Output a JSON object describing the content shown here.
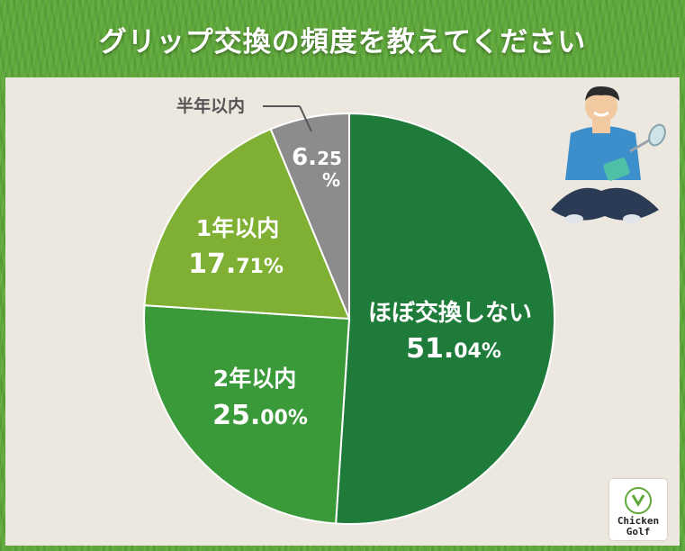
{
  "title": "グリップ交換の頻度を教えてください",
  "chart_data": {
    "type": "pie",
    "slices": [
      {
        "label": "ほぼ交換しない",
        "value": 51.04,
        "int": "51.",
        "dec": "04%",
        "color": "#1f7b3a"
      },
      {
        "label": "2年以内",
        "value": 25.0,
        "int": "25.",
        "dec": "00%",
        "color": "#3a9a3a"
      },
      {
        "label": "1年以内",
        "value": 17.71,
        "int": "17.",
        "dec": "71%",
        "color": "#7fb033"
      },
      {
        "label": "半年以内",
        "value": 6.25,
        "int": "6.",
        "dec": "25",
        "pct": "%",
        "color": "#8c8c8c"
      }
    ]
  },
  "logo": {
    "line1": "Chicken",
    "line2": "Golf"
  }
}
